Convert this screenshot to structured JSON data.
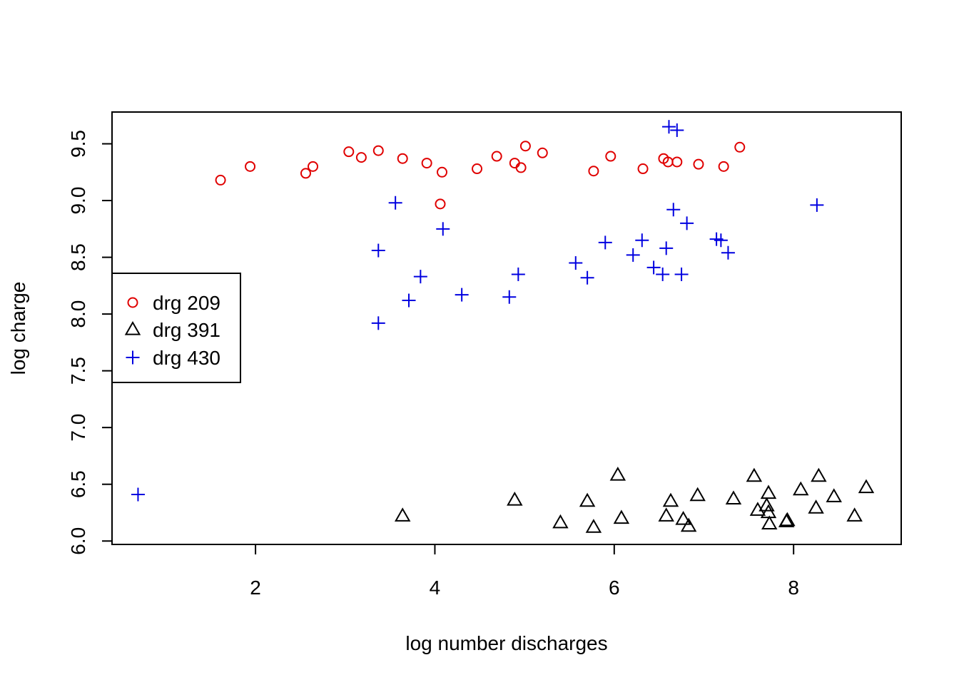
{
  "chart_data": {
    "type": "scatter",
    "title": "",
    "xlabel": "log number discharges",
    "ylabel": "log charge",
    "xlim": [
      0.4,
      9.2
    ],
    "ylim": [
      5.97,
      9.78
    ],
    "x_ticks": [
      2,
      4,
      6,
      8
    ],
    "y_ticks": [
      6.0,
      6.5,
      7.0,
      7.5,
      8.0,
      8.5,
      9.0,
      9.5
    ],
    "x_tick_labels": [
      "2",
      "4",
      "6",
      "8"
    ],
    "y_tick_labels": [
      "6.0",
      "6.5",
      "7.0",
      "7.5",
      "8.0",
      "8.5",
      "9.0",
      "9.5"
    ],
    "grid": false,
    "legend_position": "left-middle",
    "series": [
      {
        "name": "drg 209",
        "marker": "circle",
        "color": "#e00000",
        "x": [
          1.61,
          1.94,
          2.56,
          2.64,
          3.04,
          3.18,
          3.37,
          3.64,
          3.91,
          4.08,
          4.06,
          4.47,
          4.69,
          4.89,
          4.96,
          5.01,
          5.2,
          5.77,
          5.96,
          6.32,
          6.55,
          6.6,
          6.7,
          6.94,
          7.22,
          7.4
        ],
        "y": [
          9.18,
          9.3,
          9.24,
          9.3,
          9.43,
          9.38,
          9.44,
          9.37,
          9.33,
          9.25,
          8.97,
          9.28,
          9.39,
          9.33,
          9.29,
          9.48,
          9.42,
          9.26,
          9.39,
          9.28,
          9.37,
          9.34,
          9.34,
          9.32,
          9.3,
          9.47
        ]
      },
      {
        "name": "drg 391",
        "marker": "triangle",
        "color": "#000000",
        "x": [
          3.64,
          4.89,
          5.4,
          5.7,
          5.77,
          6.04,
          6.08,
          6.58,
          6.63,
          6.77,
          6.83,
          6.93,
          7.33,
          7.56,
          7.6,
          7.7,
          7.72,
          7.72,
          7.73,
          7.92,
          7.93,
          8.08,
          8.25,
          8.28,
          8.45,
          8.68,
          8.81
        ],
        "y": [
          6.22,
          6.36,
          6.16,
          6.35,
          6.12,
          6.58,
          6.2,
          6.22,
          6.35,
          6.19,
          6.13,
          6.4,
          6.37,
          6.57,
          6.27,
          6.31,
          6.25,
          6.42,
          6.15,
          6.17,
          6.18,
          6.45,
          6.29,
          6.57,
          6.39,
          6.22,
          6.47
        ]
      },
      {
        "name": "drg 430",
        "marker": "plus",
        "color": "#0000e0",
        "x": [
          0.69,
          3.37,
          3.37,
          3.56,
          3.71,
          3.84,
          4.09,
          4.3,
          4.83,
          4.93,
          5.57,
          5.7,
          5.9,
          6.21,
          6.31,
          6.44,
          6.54,
          6.58,
          6.61,
          6.66,
          6.7,
          6.75,
          6.81,
          7.14,
          7.19,
          7.27,
          8.26
        ],
        "y": [
          6.41,
          7.92,
          8.56,
          8.98,
          8.12,
          8.33,
          8.75,
          8.17,
          8.15,
          8.35,
          8.45,
          8.32,
          8.63,
          8.52,
          8.65,
          8.41,
          8.35,
          8.58,
          9.65,
          8.92,
          9.62,
          8.35,
          8.8,
          8.66,
          8.65,
          8.54,
          8.96
        ]
      }
    ]
  }
}
